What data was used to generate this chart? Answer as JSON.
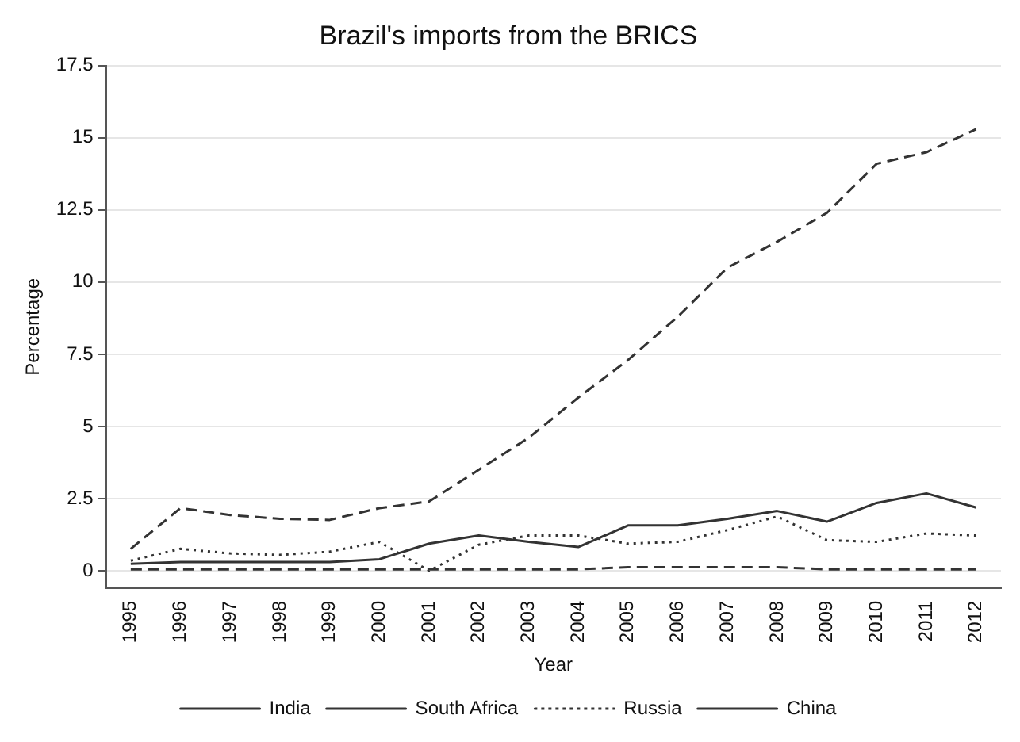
{
  "chart_data": {
    "type": "line",
    "title": "Brazil's imports from the BRICS",
    "xlabel": "Year",
    "ylabel": "Percentage",
    "categories": [
      "1995",
      "1996",
      "1997",
      "1998",
      "1999",
      "2000",
      "2001",
      "2002",
      "2003",
      "2004",
      "2005",
      "2006",
      "2007",
      "2008",
      "2009",
      "2010",
      "2011",
      "2012"
    ],
    "series": [
      {
        "name": "India",
        "color": "#333333",
        "line_style": "solid",
        "values": [
          0.24,
          0.3,
          0.3,
          0.3,
          0.3,
          0.4,
          0.94,
          1.22,
          1.0,
          0.82,
          1.57,
          1.57,
          1.8,
          2.07,
          1.7,
          2.35,
          2.68,
          2.19
        ]
      },
      {
        "name": "South Africa",
        "color": "#333333",
        "line_style": "dashed",
        "values": [
          0.05,
          0.05,
          0.05,
          0.05,
          0.05,
          0.05,
          0.05,
          0.05,
          0.05,
          0.05,
          0.12,
          0.12,
          0.12,
          0.12,
          0.05,
          0.05,
          0.05,
          0.05
        ]
      },
      {
        "name": "Russia",
        "color": "#333333",
        "line_style": "dotted",
        "values": [
          0.35,
          0.76,
          0.6,
          0.55,
          0.66,
          1.0,
          0.0,
          0.9,
          1.22,
          1.22,
          0.94,
          1.0,
          1.41,
          1.88,
          1.06,
          1.0,
          1.29,
          1.22
        ]
      },
      {
        "name": "China",
        "color": "#333333",
        "line_style": "dashed",
        "values": [
          0.76,
          2.17,
          1.93,
          1.8,
          1.76,
          2.17,
          2.4,
          3.5,
          4.6,
          6.0,
          7.3,
          8.8,
          10.5,
          11.4,
          12.4,
          14.1,
          14.5,
          15.3
        ]
      }
    ],
    "ylim": [
      -0.6,
      17.5
    ],
    "yticks": [
      0,
      2.5,
      5,
      7.5,
      10,
      12.5,
      15,
      17.5
    ],
    "grid": "y",
    "legend": "bottom"
  }
}
